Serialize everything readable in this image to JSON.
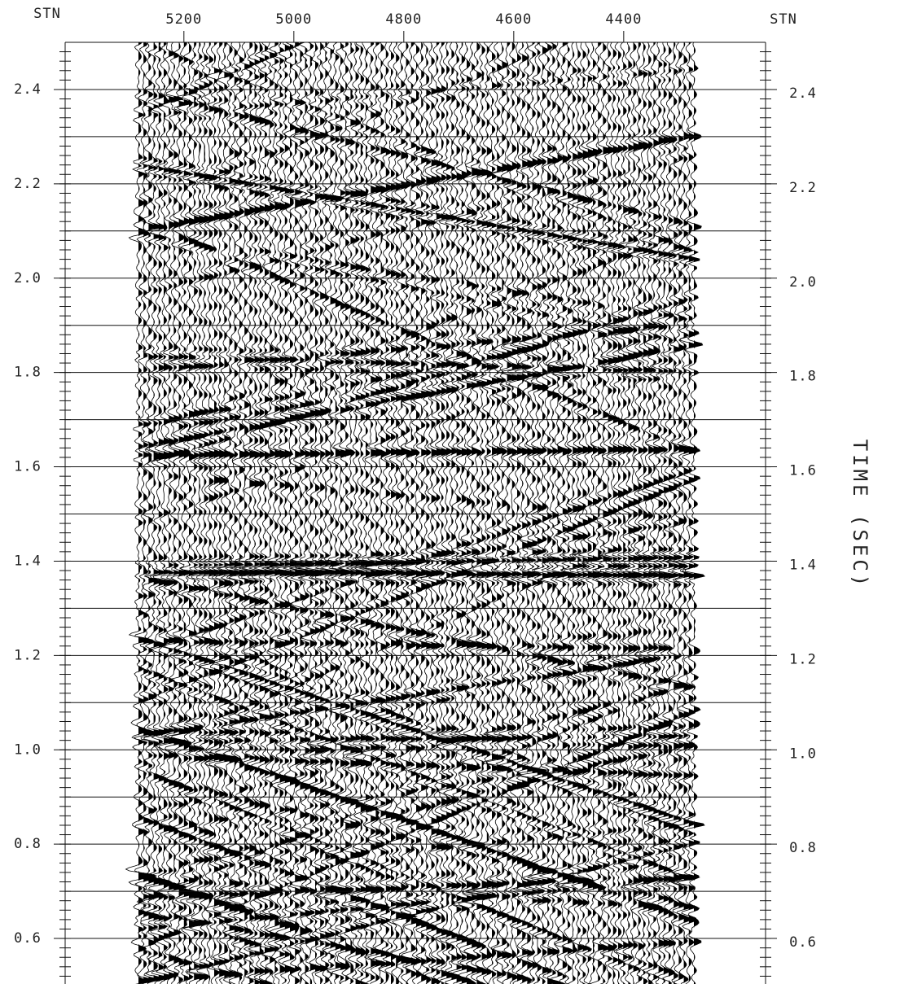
{
  "chart_data": {
    "type": "seismic",
    "x_label": "STN",
    "x_label_right": "STN",
    "y_label": "TIME (SEC)",
    "xlim": [
      5416,
      4142
    ],
    "xticks": [
      5200,
      5000,
      4800,
      4600,
      4400
    ],
    "ylim": [
      0.5,
      2.5
    ],
    "yticks": [
      0.6,
      0.8,
      {
        "value": 1,
        "label": "1.0"
      },
      1.2,
      1.4,
      1.6,
      1.8,
      {
        "value": 2,
        "label": "2.0"
      },
      2.2,
      2.4
    ],
    "minor_yticks": [
      0.7,
      0.9,
      1.1,
      1.3,
      1.5,
      1.7,
      1.9,
      2.1,
      2.3
    ],
    "grid": true,
    "color": "#000000"
  }
}
